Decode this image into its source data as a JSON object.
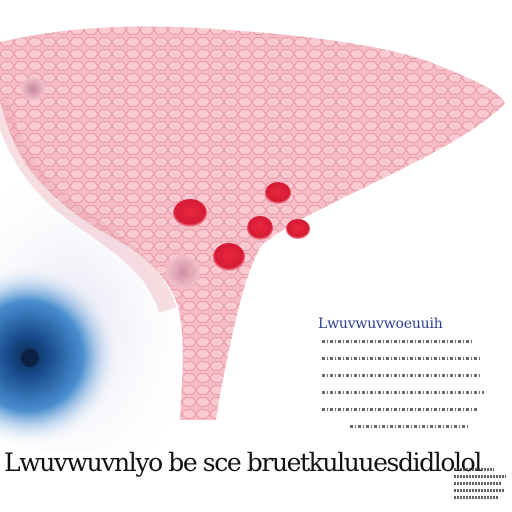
{
  "illustration": {
    "tissue_color": "#f3a7b3",
    "cell_outline_color": "#d9707f",
    "lesion_color": "#e0223a",
    "vessel_color": "#1f5fa8"
  },
  "inset": {
    "title": "Lwuvwuvwoeuuih",
    "body_lines": 6
  },
  "caption": {
    "text": "Lwuvwuvnlyo be sce bruetkuluuesdidlolol"
  },
  "side_notes": {
    "lines": 5
  }
}
